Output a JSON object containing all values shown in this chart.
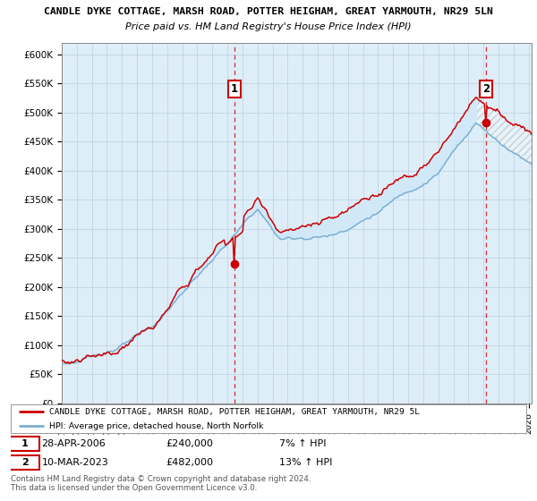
{
  "title_line1": "CANDLE DYKE COTTAGE, MARSH ROAD, POTTER HEIGHAM, GREAT YARMOUTH, NR29 5LN",
  "title_line2": "Price paid vs. HM Land Registry's House Price Index (HPI)",
  "ylim": [
    0,
    620000
  ],
  "yticks": [
    0,
    50000,
    100000,
    150000,
    200000,
    250000,
    300000,
    350000,
    400000,
    450000,
    500000,
    550000,
    600000
  ],
  "ytick_labels": [
    "£0",
    "£50K",
    "£100K",
    "£150K",
    "£200K",
    "£250K",
    "£300K",
    "£350K",
    "£400K",
    "£450K",
    "£500K",
    "£550K",
    "£600K"
  ],
  "hpi_color": "#7bafd4",
  "property_color": "#cc0000",
  "fill_color": "#d0e8f8",
  "purchase1_date": 2006.45,
  "purchase1_price": 240000,
  "purchase2_date": 2023.19,
  "purchase2_price": 482000,
  "legend_property": "CANDLE DYKE COTTAGE, MARSH ROAD, POTTER HEIGHAM, GREAT YARMOUTH, NR29 5L",
  "legend_hpi": "HPI: Average price, detached house, North Norfolk",
  "footer": "Contains HM Land Registry data © Crown copyright and database right 2024.\nThis data is licensed under the Open Government Licence v3.0.",
  "background_color": "#ffffff",
  "chart_bg_color": "#deeef8",
  "grid_color": "#b0c8dc"
}
